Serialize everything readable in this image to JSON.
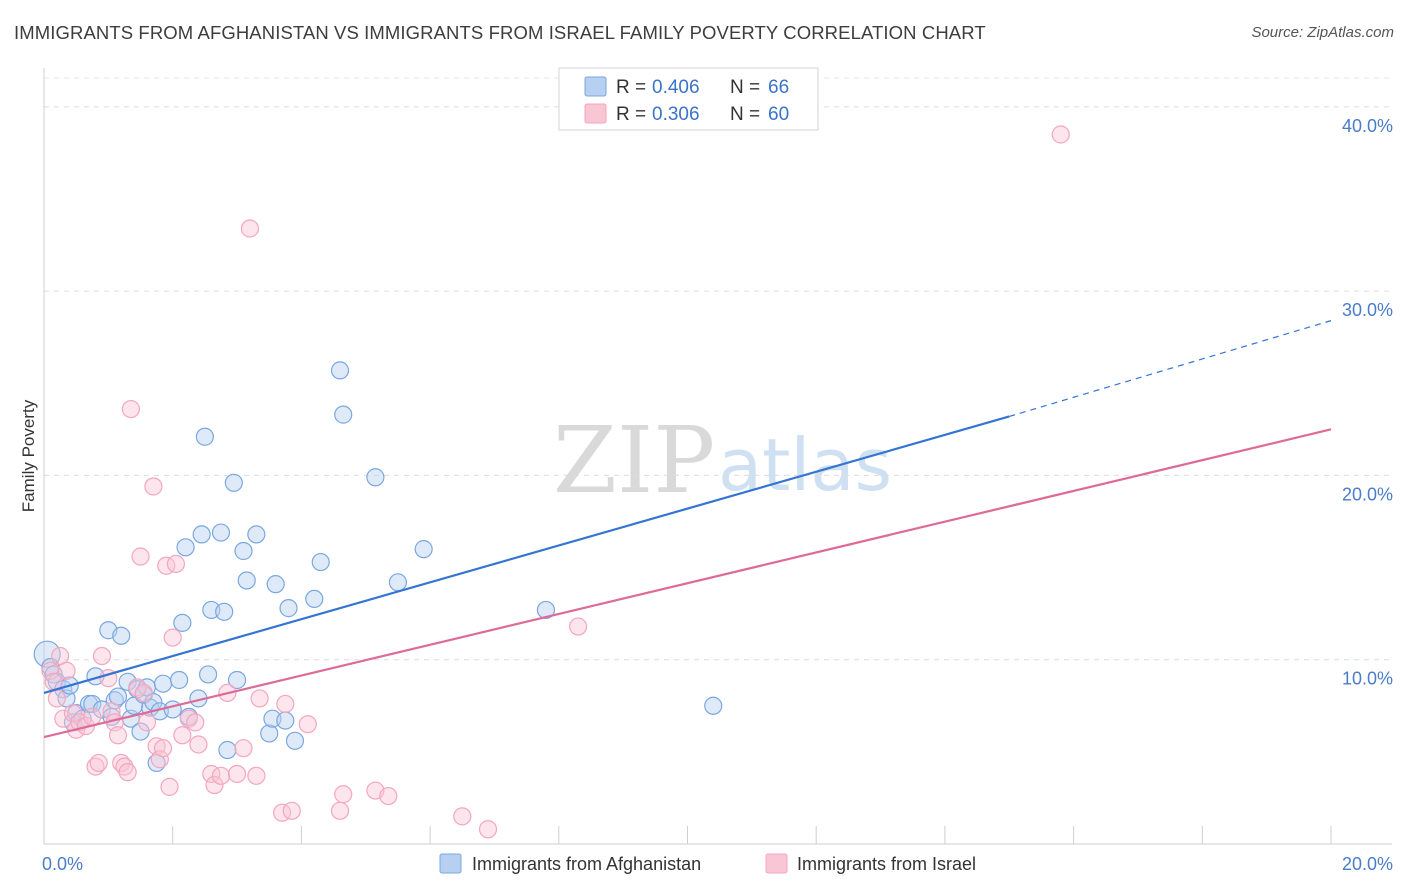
{
  "title": "IMMIGRANTS FROM AFGHANISTAN VS IMMIGRANTS FROM ISRAEL FAMILY POVERTY CORRELATION CHART",
  "source": "Source: ZipAtlas.com",
  "watermark": {
    "part1": "ZIP",
    "part2": "atlas"
  },
  "chart_data": {
    "type": "scatter",
    "title": "IMMIGRANTS FROM AFGHANISTAN VS IMMIGRANTS FROM ISRAEL FAMILY POVERTY CORRELATION CHART",
    "xlabel": "",
    "ylabel": "Family Poverty",
    "xlim": [
      0,
      20
    ],
    "ylim": [
      0,
      42
    ],
    "x_ticks": [
      {
        "value": 0,
        "label": "0.0%"
      },
      {
        "value": 20,
        "label": "20.0%"
      }
    ],
    "y_ticks": [
      {
        "value": 10,
        "label": "10.0%"
      },
      {
        "value": 20,
        "label": "20.0%"
      },
      {
        "value": 30,
        "label": "30.0%"
      },
      {
        "value": 40,
        "label": "40.0%"
      }
    ],
    "grid": true,
    "legend_position": "top-center",
    "series": [
      {
        "name": "Immigrants from Afghanistan",
        "color": "#7aa7e0",
        "line_color": "#3375d1",
        "R": "0.406",
        "N": "66",
        "trend": {
          "x0": 0,
          "y0": 8.2,
          "x1": 15,
          "y1": 23.2,
          "dashed_to_x": 20,
          "dashed_to_y": 28.4
        },
        "points": [
          [
            0.05,
            10.3
          ],
          [
            0.1,
            9.6
          ],
          [
            0.15,
            9.2
          ],
          [
            0.2,
            8.8
          ],
          [
            0.3,
            8.4
          ],
          [
            0.35,
            7.9
          ],
          [
            0.4,
            8.6
          ],
          [
            0.45,
            6.6
          ],
          [
            0.5,
            7.1
          ],
          [
            0.6,
            6.8
          ],
          [
            0.7,
            7.6
          ],
          [
            0.75,
            7.6
          ],
          [
            0.8,
            9.1
          ],
          [
            0.9,
            7.3
          ],
          [
            1.0,
            11.6
          ],
          [
            1.05,
            6.9
          ],
          [
            1.1,
            7.8
          ],
          [
            1.15,
            8.0
          ],
          [
            1.2,
            11.3
          ],
          [
            1.3,
            8.8
          ],
          [
            1.35,
            6.8
          ],
          [
            1.4,
            7.5
          ],
          [
            1.45,
            8.4
          ],
          [
            1.5,
            6.1
          ],
          [
            1.55,
            8.1
          ],
          [
            1.6,
            8.5
          ],
          [
            1.65,
            7.4
          ],
          [
            1.7,
            7.7
          ],
          [
            1.75,
            4.4
          ],
          [
            1.8,
            7.2
          ],
          [
            1.85,
            8.7
          ],
          [
            2.0,
            7.3
          ],
          [
            2.1,
            8.9
          ],
          [
            2.15,
            12.0
          ],
          [
            2.2,
            16.1
          ],
          [
            2.25,
            6.9
          ],
          [
            2.4,
            7.9
          ],
          [
            2.45,
            16.8
          ],
          [
            2.5,
            22.1
          ],
          [
            2.55,
            9.2
          ],
          [
            2.6,
            12.7
          ],
          [
            2.75,
            16.9
          ],
          [
            2.8,
            12.6
          ],
          [
            2.85,
            5.1
          ],
          [
            2.95,
            19.6
          ],
          [
            3.0,
            8.9
          ],
          [
            3.1,
            15.9
          ],
          [
            3.15,
            14.3
          ],
          [
            3.3,
            16.8
          ],
          [
            3.5,
            6.0
          ],
          [
            3.55,
            6.8
          ],
          [
            3.6,
            14.1
          ],
          [
            3.75,
            6.7
          ],
          [
            3.8,
            12.8
          ],
          [
            3.9,
            5.6
          ],
          [
            4.2,
            13.3
          ],
          [
            4.3,
            15.3
          ],
          [
            4.6,
            25.7
          ],
          [
            4.65,
            23.3
          ],
          [
            5.15,
            19.9
          ],
          [
            5.5,
            14.2
          ],
          [
            5.9,
            16.0
          ],
          [
            7.8,
            12.7
          ],
          [
            10.4,
            7.5
          ]
        ]
      },
      {
        "name": "Immigrants from Israel",
        "color": "#f4a6bf",
        "line_color": "#de6b96",
        "R": "0.306",
        "N": "60",
        "trend": {
          "x0": 0,
          "y0": 5.8,
          "x1": 20,
          "y1": 22.5
        },
        "points": [
          [
            0.1,
            9.4
          ],
          [
            0.15,
            8.8
          ],
          [
            0.2,
            7.9
          ],
          [
            0.25,
            10.2
          ],
          [
            0.3,
            6.8
          ],
          [
            0.35,
            9.4
          ],
          [
            0.45,
            7.1
          ],
          [
            0.5,
            6.2
          ],
          [
            0.55,
            6.6
          ],
          [
            0.65,
            6.4
          ],
          [
            0.75,
            6.9
          ],
          [
            0.8,
            4.2
          ],
          [
            0.85,
            4.4
          ],
          [
            0.9,
            10.2
          ],
          [
            1.0,
            9.0
          ],
          [
            1.05,
            7.2
          ],
          [
            1.1,
            6.6
          ],
          [
            1.15,
            5.9
          ],
          [
            1.2,
            4.4
          ],
          [
            1.25,
            4.2
          ],
          [
            1.3,
            3.9
          ],
          [
            1.35,
            23.6
          ],
          [
            1.45,
            8.5
          ],
          [
            1.5,
            15.6
          ],
          [
            1.55,
            8.2
          ],
          [
            1.6,
            6.6
          ],
          [
            1.7,
            19.4
          ],
          [
            1.75,
            5.3
          ],
          [
            1.8,
            4.6
          ],
          [
            1.85,
            5.2
          ],
          [
            1.9,
            15.1
          ],
          [
            1.95,
            3.1
          ],
          [
            2.0,
            11.2
          ],
          [
            2.05,
            15.2
          ],
          [
            2.15,
            5.9
          ],
          [
            2.25,
            6.8
          ],
          [
            2.35,
            6.6
          ],
          [
            2.4,
            5.4
          ],
          [
            2.6,
            3.8
          ],
          [
            2.65,
            3.2
          ],
          [
            2.75,
            3.7
          ],
          [
            2.85,
            8.2
          ],
          [
            3.0,
            3.8
          ],
          [
            3.1,
            5.2
          ],
          [
            3.2,
            33.4
          ],
          [
            3.3,
            3.7
          ],
          [
            3.35,
            7.9
          ],
          [
            3.7,
            1.7
          ],
          [
            3.75,
            7.6
          ],
          [
            3.85,
            1.8
          ],
          [
            4.1,
            6.5
          ],
          [
            4.6,
            1.8
          ],
          [
            4.65,
            2.7
          ],
          [
            5.15,
            2.9
          ],
          [
            5.35,
            2.6
          ],
          [
            6.5,
            1.5
          ],
          [
            6.9,
            0.8
          ],
          [
            8.3,
            11.8
          ],
          [
            15.8,
            38.5
          ]
        ]
      }
    ]
  }
}
